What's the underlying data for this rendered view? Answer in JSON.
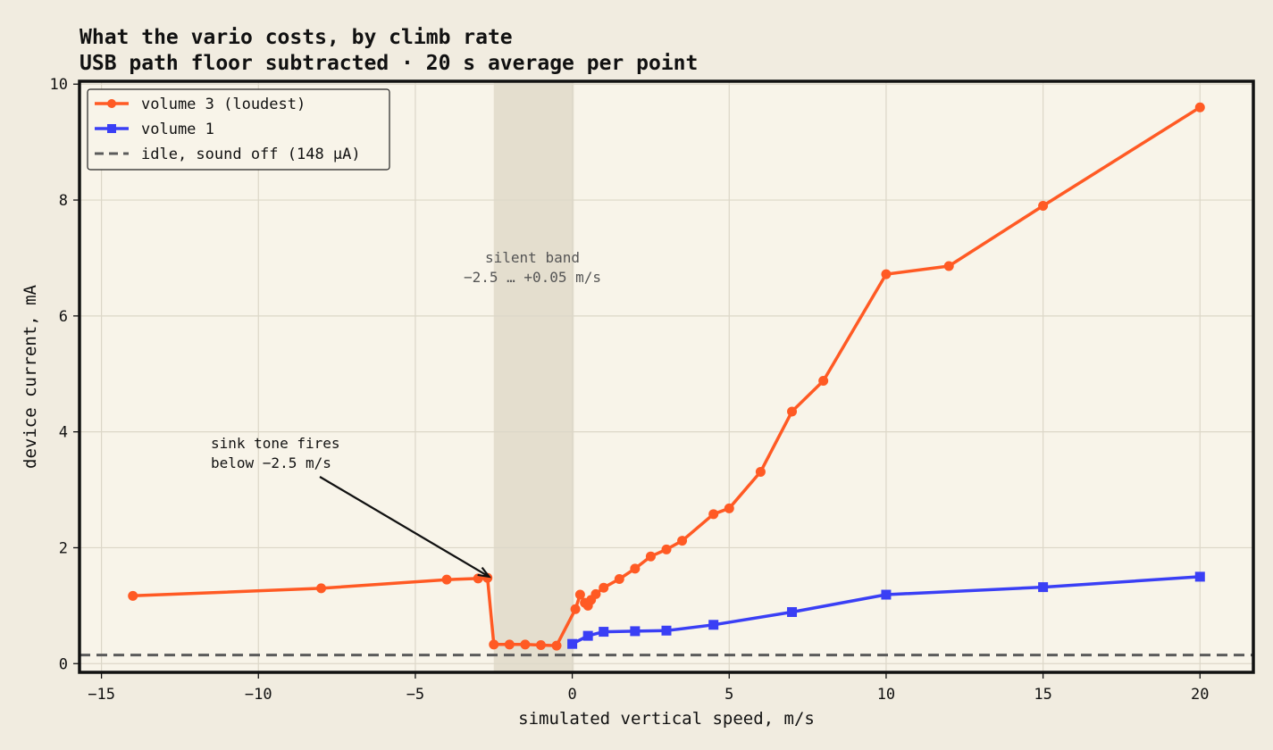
{
  "chart_data": {
    "type": "line",
    "title": "What the vario costs, by climb rate",
    "subtitle": "USB path floor subtracted · 20 s average per point",
    "xlabel": "simulated vertical speed, m/s",
    "ylabel": "device current, mA",
    "xlim": [
      -15.7,
      21.7
    ],
    "ylim": [
      -0.15,
      10.05
    ],
    "xticks": [
      -15,
      -10,
      -5,
      0,
      5,
      10,
      15,
      20
    ],
    "yticks": [
      0,
      2,
      4,
      6,
      8,
      10
    ],
    "grid": true,
    "legend_position": "top-left",
    "colors": {
      "vol3": "#ff5a24",
      "vol1": "#3a3ff5",
      "idle": "#5b5b5b",
      "band": "#e4dece"
    },
    "series": [
      {
        "name": "volume 3 (loudest)",
        "marker": "circle",
        "x": [
          -14,
          -8,
          -4,
          -3,
          -2.7,
          -2.5,
          -2,
          -1.5,
          -1,
          -0.5,
          0.1,
          0.25,
          0.4,
          0.5,
          0.6,
          0.75,
          1,
          1.5,
          2,
          2.5,
          3,
          3.5,
          4.5,
          5,
          6,
          7,
          8,
          10,
          12,
          15,
          20
        ],
        "y": [
          1.17,
          1.3,
          1.45,
          1.47,
          1.48,
          0.33,
          0.33,
          0.33,
          0.32,
          0.31,
          0.94,
          1.19,
          1.05,
          1.0,
          1.1,
          1.2,
          1.31,
          1.46,
          1.64,
          1.85,
          1.97,
          2.12,
          2.58,
          2.68,
          3.31,
          4.35,
          4.88,
          6.72,
          6.86,
          7.9,
          9.6
        ]
      },
      {
        "name": "volume 1",
        "marker": "square",
        "x": [
          0,
          0.5,
          1,
          2,
          3,
          4.5,
          7,
          10,
          15,
          20
        ],
        "y": [
          0.34,
          0.48,
          0.55,
          0.56,
          0.57,
          0.67,
          0.89,
          1.19,
          1.32,
          1.5
        ]
      },
      {
        "name": "idle, sound off (148 µA)",
        "style": "dashed",
        "y": 0.148
      }
    ],
    "shaded_band": {
      "x": [
        -2.5,
        0.05
      ],
      "label_lines": [
        "silent band",
        "−2.5 … +0.05 m/s"
      ]
    },
    "annotation": {
      "text_lines": [
        "sink tone fires",
        "below −2.5 m/s"
      ],
      "text_xy": [
        -11.6,
        3.75
      ],
      "arrow_to": [
        -2.65,
        1.5
      ]
    }
  }
}
